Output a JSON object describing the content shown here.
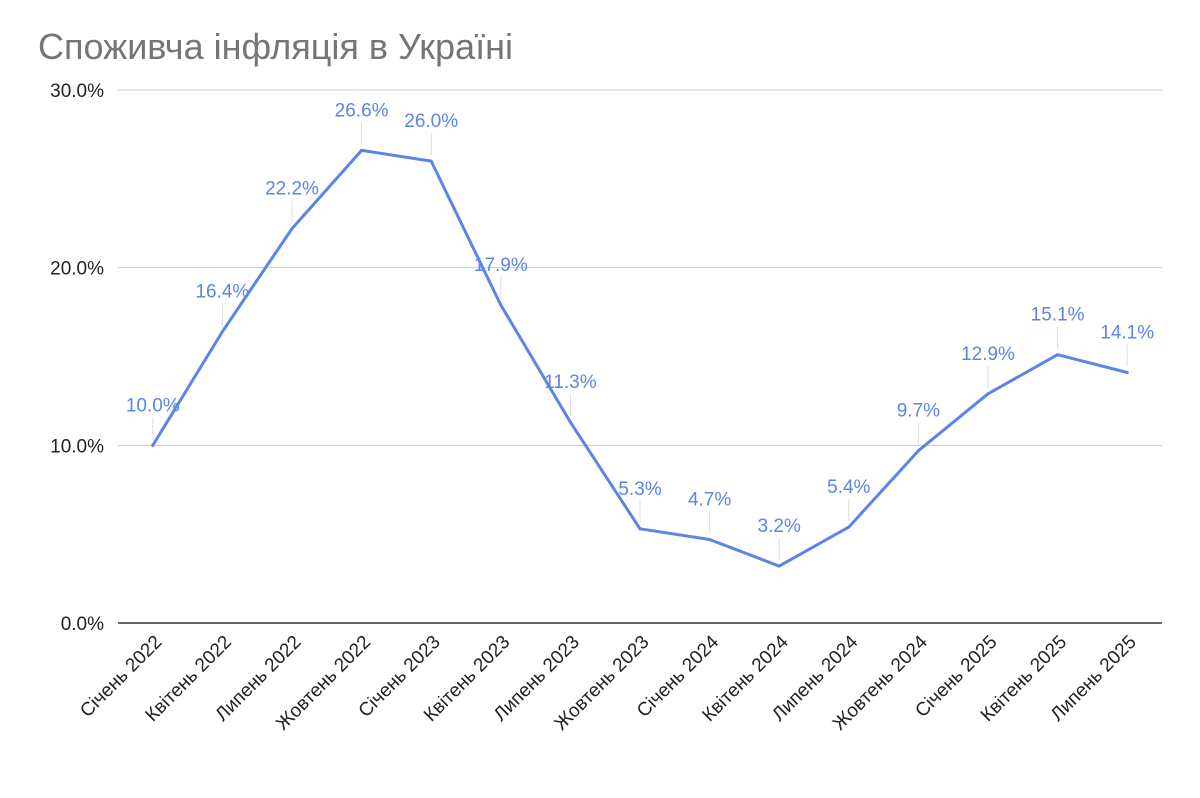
{
  "chart_data": {
    "type": "line",
    "title": "Споживча інфляція в Україні",
    "xlabel": "",
    "ylabel": "",
    "ylim": [
      0,
      30
    ],
    "y_ticks": [
      "0.0%",
      "10.0%",
      "20.0%",
      "30.0%"
    ],
    "y_tick_values": [
      0,
      10,
      20,
      30
    ],
    "categories": [
      "Січень 2022",
      "Квітень 2022",
      "Липень 2022",
      "Жовтень 2022",
      "Січень 2023",
      "Квітень 2023",
      "Липень 2023",
      "Жовтень 2023",
      "Січень 2024",
      "Квітень 2024",
      "Липень 2024",
      "Жовтень 2024",
      "Січень 2025",
      "Квітень 2025",
      "Липень 2025"
    ],
    "series": [
      {
        "values": [
          10.0,
          16.4,
          22.2,
          26.6,
          26.0,
          17.9,
          11.3,
          5.3,
          4.7,
          3.2,
          5.4,
          9.7,
          12.9,
          15.1,
          14.1
        ],
        "data_labels": [
          "10.0%",
          "16.4%",
          "22.2%",
          "26.6%",
          "26.0%",
          "17.9%",
          "11.3%",
          "5.3%",
          "4.7%",
          "3.2%",
          "5.4%",
          "9.7%",
          "12.9%",
          "15.1%",
          "14.1%"
        ],
        "color": "#5b85e6"
      }
    ],
    "grid": true,
    "legend": "none",
    "colors": {
      "line": "#5b85e6",
      "grid": "#cccccc",
      "axis": "#333333",
      "title": "#757575",
      "tick_text": "#222222"
    }
  }
}
